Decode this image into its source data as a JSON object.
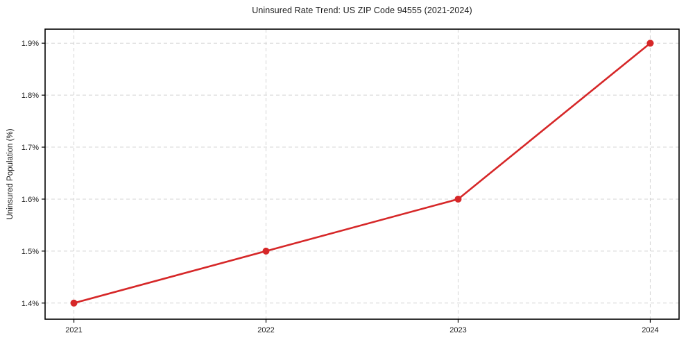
{
  "figure": {
    "title": "Uninsured Rate Trend: US ZIP Code 94555 (2021-2024)"
  },
  "chart_data": {
    "type": "line",
    "title": "Uninsured Rate Trend: US ZIP Code 94555 (2021-2024)",
    "xlabel": "",
    "ylabel": "Uninsured Population (%)",
    "categories": [
      "2021",
      "2022",
      "2023",
      "2024"
    ],
    "x": [
      2021,
      2022,
      2023,
      2024
    ],
    "values": [
      1.4,
      1.5,
      1.6,
      1.9
    ],
    "x_tick_labels": [
      "2021",
      "2022",
      "2023",
      "2024"
    ],
    "y_ticks": [
      1.4,
      1.5,
      1.6,
      1.7,
      1.8,
      1.9
    ],
    "y_tick_labels": [
      "1.4%",
      "1.5%",
      "1.6%",
      "1.7%",
      "1.8%",
      "1.9%"
    ],
    "xlim": [
      2020.85,
      2024.15
    ],
    "ylim": [
      1.369,
      1.927
    ],
    "grid": true,
    "grid_style": "dashed",
    "legend": "none",
    "colors": {
      "line": "#d62728",
      "marker": "#d62728",
      "grid": "#d4d4d4",
      "frame": "#000000",
      "text": "#1a1a1a"
    }
  }
}
